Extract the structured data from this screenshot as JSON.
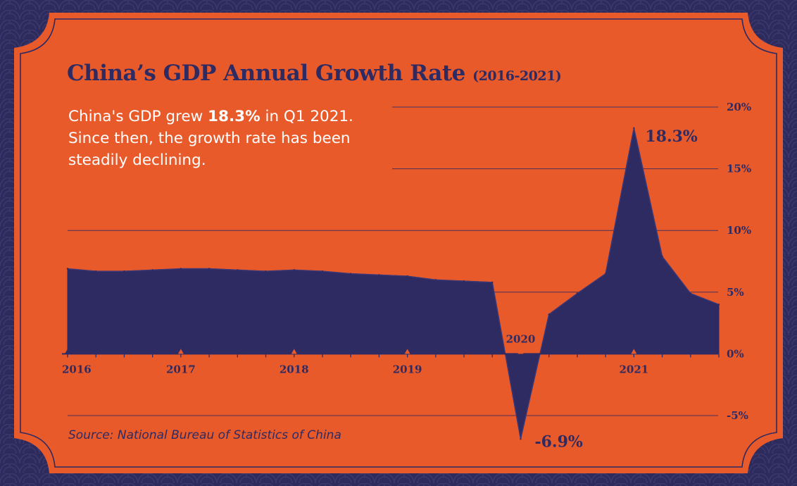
{
  "title": {
    "main": "China’s GDP Annual Growth Rate",
    "sub": "(2016-2021)"
  },
  "headline": {
    "pre": "China's GDP grew ",
    "value": "18.3%",
    "post": " in Q1 2021. Since then, the growth rate has been steadily declining."
  },
  "source": "Source: National Bureau of Statistics of China",
  "colors": {
    "background": "#e95a2b",
    "area": "#2e2b62",
    "frame": "#2d2a5c",
    "text_light": "#ffffff"
  },
  "chart_data": {
    "type": "area",
    "title": "China’s GDP Annual Growth Rate (2016-2021)",
    "xlabel": "",
    "ylabel": "",
    "ylim": [
      -5,
      20
    ],
    "y_ticks": [
      "-5%",
      "0%",
      "5%",
      "10%",
      "15%",
      "20%"
    ],
    "y_tick_values": [
      -5,
      0,
      5,
      10,
      15,
      20
    ],
    "x_tick_labels": [
      "2016",
      "2017",
      "2018",
      "2019",
      "2020",
      "2021"
    ],
    "grid": true,
    "legend": "none",
    "series": [
      {
        "values": [
          {
            "x": "2016 Q1",
            "y": 6.9
          },
          {
            "x": "2016 Q2",
            "y": 6.7
          },
          {
            "x": "2016 Q3",
            "y": 6.7
          },
          {
            "x": "2016 Q4",
            "y": 6.8
          },
          {
            "x": "2017 Q1",
            "y": 6.9
          },
          {
            "x": "2017 Q2",
            "y": 6.9
          },
          {
            "x": "2017 Q3",
            "y": 6.8
          },
          {
            "x": "2017 Q4",
            "y": 6.7
          },
          {
            "x": "2018 Q1",
            "y": 6.8
          },
          {
            "x": "2018 Q2",
            "y": 6.7
          },
          {
            "x": "2018 Q3",
            "y": 6.5
          },
          {
            "x": "2018 Q4",
            "y": 6.4
          },
          {
            "x": "2019 Q1",
            "y": 6.3
          },
          {
            "x": "2019 Q2",
            "y": 6.0
          },
          {
            "x": "2019 Q3",
            "y": 5.9
          },
          {
            "x": "2019 Q4",
            "y": 5.8
          },
          {
            "x": "2020 Q1",
            "y": -6.9
          },
          {
            "x": "2020 Q2",
            "y": 3.2
          },
          {
            "x": "2020 Q3",
            "y": 4.9
          },
          {
            "x": "2020 Q4",
            "y": 6.5
          },
          {
            "x": "2021 Q1",
            "y": 18.3
          },
          {
            "x": "2021 Q2",
            "y": 7.9
          },
          {
            "x": "2021 Q3",
            "y": 4.9
          },
          {
            "x": "2021 Q4",
            "y": 4.0
          }
        ]
      }
    ],
    "annotations": [
      {
        "x": "2021 Q1",
        "y": 18.3,
        "text": "18.3%"
      },
      {
        "x": "2020 Q1",
        "y": -6.9,
        "text": "-6.9%"
      }
    ]
  }
}
